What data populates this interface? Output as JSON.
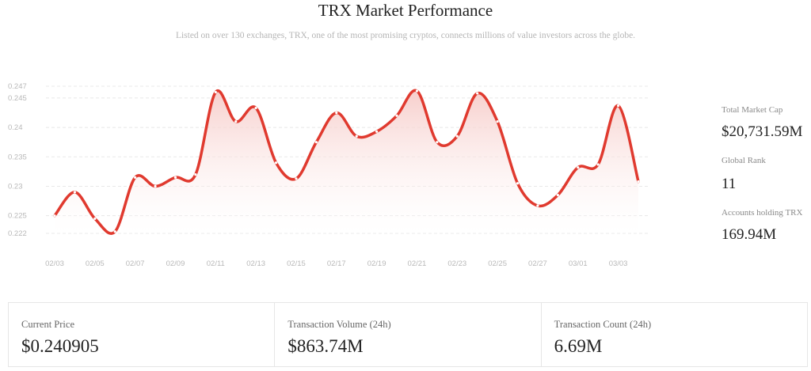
{
  "header": {
    "title": "TRX Market Performance",
    "subtitle": "Listed on over 130 exchanges, TRX, one of the most promising cryptos, connects millions of value investors across the globe."
  },
  "stats": [
    {
      "label": "Total Market Cap",
      "value": "$20,731.59M"
    },
    {
      "label": "Global Rank",
      "value": "11"
    },
    {
      "label": "Accounts holding TRX",
      "value": "169.94M"
    }
  ],
  "cards": [
    {
      "label": "Current Price",
      "value": "$0.240905"
    },
    {
      "label": "Transaction Volume (24h)",
      "value": "$863.74M"
    },
    {
      "label": "Transaction Count (24h)",
      "value": "6.69M"
    }
  ],
  "colors": {
    "line": "#e03a2f",
    "area_top": "#f6c9c6",
    "grid": "#e8e8e8"
  },
  "chart_data": {
    "type": "area",
    "title": "",
    "xlabel": "",
    "ylabel": "",
    "grid": true,
    "ylim": [
      0.222,
      0.247
    ],
    "yticks": [
      "0.222",
      "0.225",
      "0.23",
      "0.235",
      "0.24",
      "0.245",
      "0.247"
    ],
    "xticks": [
      "02/03",
      "02/05",
      "02/07",
      "02/09",
      "02/11",
      "02/13",
      "02/15",
      "02/17",
      "02/19",
      "02/21",
      "02/23",
      "02/25",
      "02/27",
      "03/01",
      "03/03"
    ],
    "x": [
      "02/03",
      "02/04",
      "02/05",
      "02/06",
      "02/07",
      "02/08",
      "02/09",
      "02/10",
      "02/11",
      "02/12",
      "02/13",
      "02/14",
      "02/15",
      "02/16",
      "02/17",
      "02/18",
      "02/19",
      "02/20",
      "02/21",
      "02/22",
      "02/23",
      "02/24",
      "02/25",
      "02/26",
      "02/27",
      "02/28",
      "03/01",
      "03/02",
      "03/03",
      "03/04"
    ],
    "series": [
      {
        "values": [
          0.225,
          0.229,
          0.2245,
          0.2223,
          0.2315,
          0.23,
          0.2315,
          0.232,
          0.246,
          0.241,
          0.2433,
          0.234,
          0.2313,
          0.2375,
          0.2425,
          0.2385,
          0.2393,
          0.242,
          0.2462,
          0.2375,
          0.2385,
          0.2458,
          0.241,
          0.2305,
          0.2267,
          0.2285,
          0.2332,
          0.2337,
          0.2437,
          0.2308
        ]
      }
    ]
  }
}
